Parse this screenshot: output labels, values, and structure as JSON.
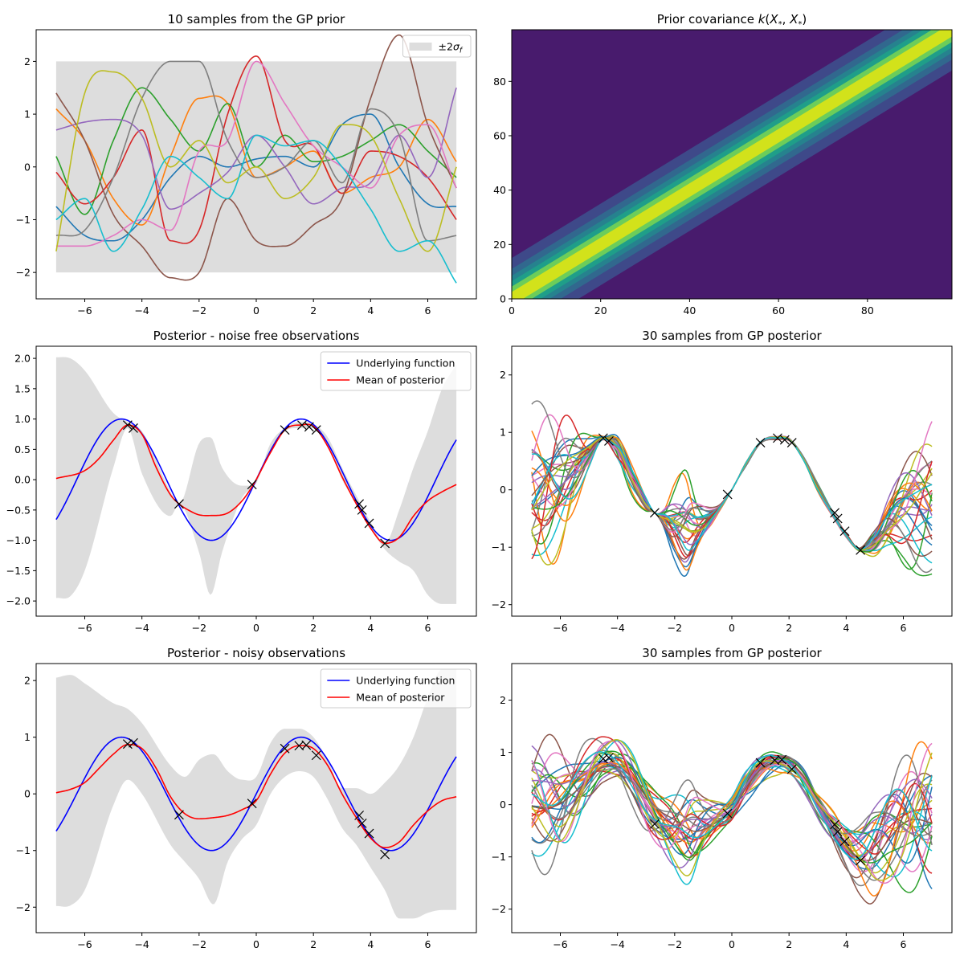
{
  "palette": [
    "#1f77b4",
    "#ff7f0e",
    "#2ca02c",
    "#d62728",
    "#9467bd",
    "#8c564b",
    "#e377c2",
    "#7f7f7f",
    "#bcbd22",
    "#17becf"
  ],
  "band_color": "#dddddd",
  "chart_data": [
    {
      "id": "prior",
      "type": "line",
      "title": "10 samples from the GP prior",
      "xlim": [
        -7.7,
        7.7
      ],
      "ylim": [
        -2.5,
        2.6
      ],
      "xticks": [
        -6,
        -4,
        -2,
        0,
        2,
        4,
        6
      ],
      "yticks": [
        -2,
        -1,
        0,
        1,
        2
      ],
      "band": {
        "x": [
          -7,
          7
        ],
        "lower": -2,
        "upper": 2
      },
      "legend": [
        {
          "kind": "patch",
          "label": "±2σ_f"
        }
      ],
      "series": [
        {
          "name": "sample 1",
          "color": "#1f77b4",
          "x": [
            -7,
            -6,
            -5,
            -4,
            -3,
            -2,
            -1,
            0,
            1,
            2,
            3,
            4,
            5,
            6,
            7
          ],
          "y": [
            -0.75,
            -1.3,
            -1.4,
            -1.0,
            -0.2,
            0.2,
            0.0,
            0.15,
            0.2,
            0.0,
            0.8,
            1.0,
            0.0,
            -0.7,
            -0.75
          ]
        },
        {
          "name": "sample 2",
          "color": "#ff7f0e",
          "x": [
            -7,
            -6,
            -5,
            -4,
            -3,
            -2,
            -1,
            0,
            1,
            2,
            3,
            4,
            5,
            6,
            7
          ],
          "y": [
            1.1,
            0.5,
            -0.6,
            -1.1,
            0.2,
            1.3,
            1.2,
            -0.2,
            0.0,
            0.3,
            -0.5,
            -0.2,
            0.0,
            0.9,
            0.1
          ]
        },
        {
          "name": "sample 3",
          "color": "#2ca02c",
          "x": [
            -7,
            -6,
            -5,
            -4,
            -3,
            -2,
            -1,
            0,
            1,
            2,
            3,
            4,
            5,
            6,
            7
          ],
          "y": [
            0.2,
            -0.9,
            0.5,
            1.5,
            0.9,
            0.3,
            1.2,
            0.0,
            0.6,
            0.1,
            0.2,
            0.5,
            0.8,
            0.3,
            -0.2
          ]
        },
        {
          "name": "sample 4",
          "color": "#d62728",
          "x": [
            -7,
            -6,
            -5,
            -4,
            -3,
            -2,
            -1,
            0,
            1,
            2,
            3,
            4,
            5,
            6,
            7
          ],
          "y": [
            -0.1,
            -0.7,
            -0.2,
            0.7,
            -1.4,
            -1.2,
            1.0,
            2.1,
            0.5,
            0.4,
            -0.5,
            0.3,
            0.2,
            -0.2,
            -1.0
          ]
        },
        {
          "name": "sample 5",
          "color": "#9467bd",
          "x": [
            -7,
            -6,
            -5,
            -4,
            -3,
            -2,
            -1,
            0,
            1,
            2,
            3,
            4,
            5,
            6,
            7
          ],
          "y": [
            0.7,
            0.85,
            0.9,
            0.6,
            -0.8,
            -0.5,
            -0.1,
            0.6,
            0.0,
            -0.7,
            -0.4,
            -0.3,
            0.6,
            -0.2,
            1.5
          ]
        },
        {
          "name": "sample 6",
          "color": "#8c564b",
          "x": [
            -7,
            -6,
            -5,
            -4,
            -3,
            -2,
            -1,
            0,
            1,
            2,
            3,
            4,
            5,
            6,
            7
          ],
          "y": [
            1.4,
            0.5,
            -0.9,
            -1.5,
            -2.1,
            -2.0,
            -0.6,
            -1.4,
            -1.5,
            -1.1,
            -0.6,
            1.3,
            2.5,
            0.8,
            -0.4
          ]
        },
        {
          "name": "sample 7",
          "color": "#e377c2",
          "x": [
            -7,
            -6,
            -5,
            -4,
            -3,
            -2,
            -1,
            0,
            1,
            2,
            3,
            4,
            5,
            6,
            7
          ],
          "y": [
            -1.5,
            -1.5,
            -1.3,
            -1.0,
            -1.2,
            0.3,
            0.5,
            2.0,
            1.2,
            0.4,
            0.0,
            -0.4,
            0.6,
            0.8,
            -0.4
          ]
        },
        {
          "name": "sample 8",
          "color": "#7f7f7f",
          "x": [
            -7,
            -6,
            -5,
            -4,
            -3,
            -2,
            -1,
            0,
            1,
            2,
            3,
            4,
            5,
            6,
            7
          ],
          "y": [
            -1.3,
            -1.2,
            -0.2,
            1.3,
            2.0,
            2.0,
            0.5,
            -0.2,
            0.0,
            0.5,
            -0.3,
            1.1,
            0.6,
            -1.4,
            -1.3
          ]
        },
        {
          "name": "sample 9",
          "color": "#bcbd22",
          "x": [
            -7,
            -6,
            -5,
            -4,
            -3,
            -2,
            -1,
            0,
            1,
            2,
            3,
            4,
            5,
            6,
            7
          ],
          "y": [
            -1.6,
            1.4,
            1.8,
            1.3,
            0.0,
            0.5,
            -0.3,
            0.0,
            -0.6,
            -0.2,
            0.8,
            0.6,
            -0.6,
            -1.6,
            0.0
          ]
        },
        {
          "name": "sample 10",
          "color": "#17becf",
          "x": [
            -7,
            -6,
            -5,
            -4,
            -3,
            -2,
            -1,
            0,
            1,
            2,
            3,
            4,
            5,
            6,
            7
          ],
          "y": [
            -1.0,
            -0.6,
            -1.6,
            -0.8,
            0.2,
            -0.2,
            -0.6,
            0.6,
            0.4,
            0.5,
            0.0,
            -0.8,
            -1.6,
            -1.4,
            -2.2
          ]
        }
      ]
    },
    {
      "id": "cov",
      "type": "heatmap",
      "title": "Prior covariance k(X*, X*)",
      "xlim": [
        0,
        99
      ],
      "ylim": [
        0,
        99
      ],
      "xticks": [
        0,
        20,
        40,
        60,
        80
      ],
      "yticks": [
        0,
        20,
        40,
        60,
        80
      ],
      "band_halfwidths": [
        15,
        11,
        8.5,
        6.5,
        4.5,
        2.5
      ],
      "level_colors": [
        "#481b6d",
        "#3e4989",
        "#31688e",
        "#26828e",
        "#1f9e89",
        "#6ccd5a",
        "#d2e21b"
      ]
    },
    {
      "id": "post_free",
      "type": "line",
      "title": "Posterior - noise free observations",
      "xlim": [
        -7.7,
        7.7
      ],
      "ylim": [
        -2.25,
        2.2
      ],
      "xticks": [
        -6,
        -4,
        -2,
        0,
        2,
        4,
        6
      ],
      "yticks": [
        -2.0,
        -1.5,
        -1.0,
        -0.5,
        0.0,
        0.5,
        1.0,
        1.5,
        2.0
      ],
      "ytick_decimals": 1,
      "band": {
        "x": [
          -7,
          -6.5,
          -6,
          -5,
          -4.5,
          -4,
          -3,
          -2.7,
          -2,
          -1.6,
          -1.2,
          -0.5,
          -0.1,
          0.5,
          1,
          1.5,
          2,
          2.5,
          3,
          3.6,
          4,
          4.5,
          5,
          5.5,
          6,
          6.5,
          7
        ],
        "lower": [
          -1.95,
          -1.92,
          -1.5,
          0.2,
          0.85,
          0.1,
          -0.6,
          -0.4,
          -1.2,
          -1.9,
          -1.2,
          -0.3,
          -0.1,
          0.5,
          0.8,
          0.85,
          0.85,
          0.6,
          0.0,
          -0.45,
          -0.8,
          -1.15,
          -1.35,
          -1.5,
          -1.9,
          -2.05,
          -2.05
        ],
        "upper": [
          2.02,
          2.0,
          1.8,
          1.1,
          0.95,
          0.8,
          -0.2,
          -0.4,
          0.6,
          0.7,
          0.2,
          -0.1,
          -0.1,
          0.6,
          0.85,
          0.95,
          0.92,
          0.7,
          0.2,
          -0.35,
          -0.7,
          -1.05,
          -0.5,
          0.2,
          0.8,
          1.5,
          1.9
        ]
      },
      "legend": [
        {
          "kind": "line",
          "label": "Underlying function",
          "color": "#0000ff"
        },
        {
          "kind": "line",
          "label": "Mean of posterior",
          "color": "#ff0000"
        }
      ],
      "series": [
        {
          "name": "Underlying function",
          "color": "#0000ff",
          "func": "sin",
          "x": [
            -7,
            7
          ]
        },
        {
          "name": "Mean of posterior",
          "color": "#ff0000",
          "x": [
            -7,
            -6,
            -5.5,
            -5,
            -4.5,
            -4,
            -3.5,
            -3,
            -2.7,
            -2.3,
            -2,
            -1.5,
            -1,
            -0.5,
            -0.1,
            0.5,
            1,
            1.5,
            2,
            2.5,
            3,
            3.5,
            4,
            4.5,
            5,
            5.5,
            6,
            6.5,
            7
          ],
          "y": [
            0.02,
            0.15,
            0.35,
            0.65,
            0.9,
            0.75,
            0.2,
            -0.25,
            -0.4,
            -0.52,
            -0.58,
            -0.59,
            -0.55,
            -0.35,
            -0.08,
            0.45,
            0.82,
            0.9,
            0.88,
            0.55,
            0.05,
            -0.4,
            -0.8,
            -1.05,
            -0.95,
            -0.6,
            -0.35,
            -0.2,
            -0.08
          ]
        }
      ],
      "markers": {
        "x": [
          -4.5,
          -4.3,
          -2.7,
          -0.15,
          1.0,
          1.6,
          1.85,
          2.1,
          3.6,
          3.7,
          3.95,
          4.5
        ],
        "y": [
          0.9,
          0.85,
          -0.4,
          -0.08,
          0.82,
          0.9,
          0.87,
          0.82,
          -0.4,
          -0.5,
          -0.72,
          -1.05
        ]
      }
    },
    {
      "id": "post_free_samples",
      "type": "line",
      "title": "30 samples from GP posterior",
      "xlim": [
        -7.7,
        7.7
      ],
      "ylim": [
        -2.2,
        2.5
      ],
      "xticks": [
        -6,
        -4,
        -2,
        0,
        2,
        4,
        6
      ],
      "yticks": [
        -2,
        -1,
        0,
        1,
        2
      ],
      "n_samples": 30,
      "mean_ref": "post_free",
      "markers": {
        "x": [
          -4.5,
          -4.3,
          -2.7,
          -0.15,
          1.0,
          1.6,
          1.85,
          2.1,
          3.6,
          3.7,
          3.95,
          4.5
        ],
        "y": [
          0.9,
          0.85,
          -0.4,
          -0.08,
          0.82,
          0.9,
          0.87,
          0.82,
          -0.4,
          -0.5,
          -0.72,
          -1.05
        ]
      }
    },
    {
      "id": "post_noisy",
      "type": "line",
      "title": "Posterior - noisy observations",
      "xlim": [
        -7.7,
        7.7
      ],
      "ylim": [
        -2.45,
        2.3
      ],
      "xticks": [
        -6,
        -4,
        -2,
        0,
        2,
        4,
        6
      ],
      "yticks": [
        -2,
        -1,
        0,
        1,
        2
      ],
      "band": {
        "x": [
          -7,
          -6.5,
          -6,
          -5,
          -4.5,
          -4,
          -3,
          -2.5,
          -2,
          -1.5,
          -1,
          -0.5,
          0,
          0.5,
          1,
          1.5,
          2,
          2.5,
          3,
          3.5,
          4,
          4.5,
          5,
          5.5,
          6,
          6.5,
          7
        ],
        "lower": [
          -1.98,
          -1.97,
          -1.7,
          -0.2,
          0.25,
          0.0,
          -0.9,
          -1.2,
          -1.5,
          -1.95,
          -1.2,
          -0.8,
          -0.55,
          0.0,
          0.3,
          0.4,
          0.3,
          -0.1,
          -0.6,
          -0.9,
          -1.3,
          -1.7,
          -2.2,
          -2.2,
          -2.1,
          -2.05,
          -2.05
        ],
        "upper": [
          2.05,
          2.1,
          1.95,
          1.6,
          1.5,
          1.25,
          0.5,
          0.3,
          0.6,
          0.7,
          0.4,
          0.25,
          0.3,
          0.9,
          1.15,
          1.15,
          1.0,
          0.6,
          0.1,
          0.1,
          0.0,
          0.2,
          0.5,
          1.0,
          1.7,
          2.2,
          2.2
        ]
      },
      "legend": [
        {
          "kind": "line",
          "label": "Underlying function",
          "color": "#0000ff"
        },
        {
          "kind": "line",
          "label": "Mean of posterior",
          "color": "#ff0000"
        }
      ],
      "series": [
        {
          "name": "Underlying function",
          "color": "#0000ff",
          "func": "sin",
          "x": [
            -7,
            7
          ]
        },
        {
          "name": "Mean of posterior",
          "color": "#ff0000",
          "x": [
            -7,
            -6.5,
            -6,
            -5.5,
            -5,
            -4.5,
            -4,
            -3.5,
            -3,
            -2.5,
            -2,
            -1.5,
            -1,
            -0.5,
            0,
            0.5,
            1,
            1.5,
            2,
            2.5,
            3,
            3.5,
            4,
            4.5,
            5,
            5.5,
            6,
            6.5,
            7
          ],
          "y": [
            0.02,
            0.08,
            0.2,
            0.45,
            0.7,
            0.87,
            0.8,
            0.45,
            -0.05,
            -0.35,
            -0.44,
            -0.42,
            -0.38,
            -0.28,
            -0.12,
            0.35,
            0.72,
            0.85,
            0.8,
            0.5,
            0.0,
            -0.42,
            -0.78,
            -0.95,
            -0.85,
            -0.55,
            -0.3,
            -0.12,
            -0.05
          ]
        }
      ],
      "markers": {
        "x": [
          -4.5,
          -4.3,
          -2.7,
          -0.15,
          1.0,
          1.5,
          1.75,
          2.1,
          3.6,
          3.7,
          3.95,
          4.5
        ],
        "y": [
          0.88,
          0.9,
          -0.37,
          -0.17,
          0.8,
          0.85,
          0.86,
          0.68,
          -0.38,
          -0.52,
          -0.7,
          -1.07
        ]
      }
    },
    {
      "id": "post_noisy_samples",
      "type": "line",
      "title": "30 samples from GP posterior",
      "xlim": [
        -7.7,
        7.7
      ],
      "ylim": [
        -2.45,
        2.7
      ],
      "xticks": [
        -6,
        -4,
        -2,
        0,
        2,
        4,
        6
      ],
      "yticks": [
        -2,
        -1,
        0,
        1,
        2
      ],
      "n_samples": 30,
      "mean_ref": "post_noisy",
      "markers": {
        "x": [
          -4.5,
          -4.3,
          -2.7,
          -0.15,
          1.0,
          1.5,
          1.75,
          2.1,
          3.6,
          3.7,
          3.95,
          4.5
        ],
        "y": [
          0.88,
          0.9,
          -0.37,
          -0.17,
          0.8,
          0.85,
          0.86,
          0.68,
          -0.38,
          -0.52,
          -0.7,
          -1.07
        ]
      }
    }
  ]
}
